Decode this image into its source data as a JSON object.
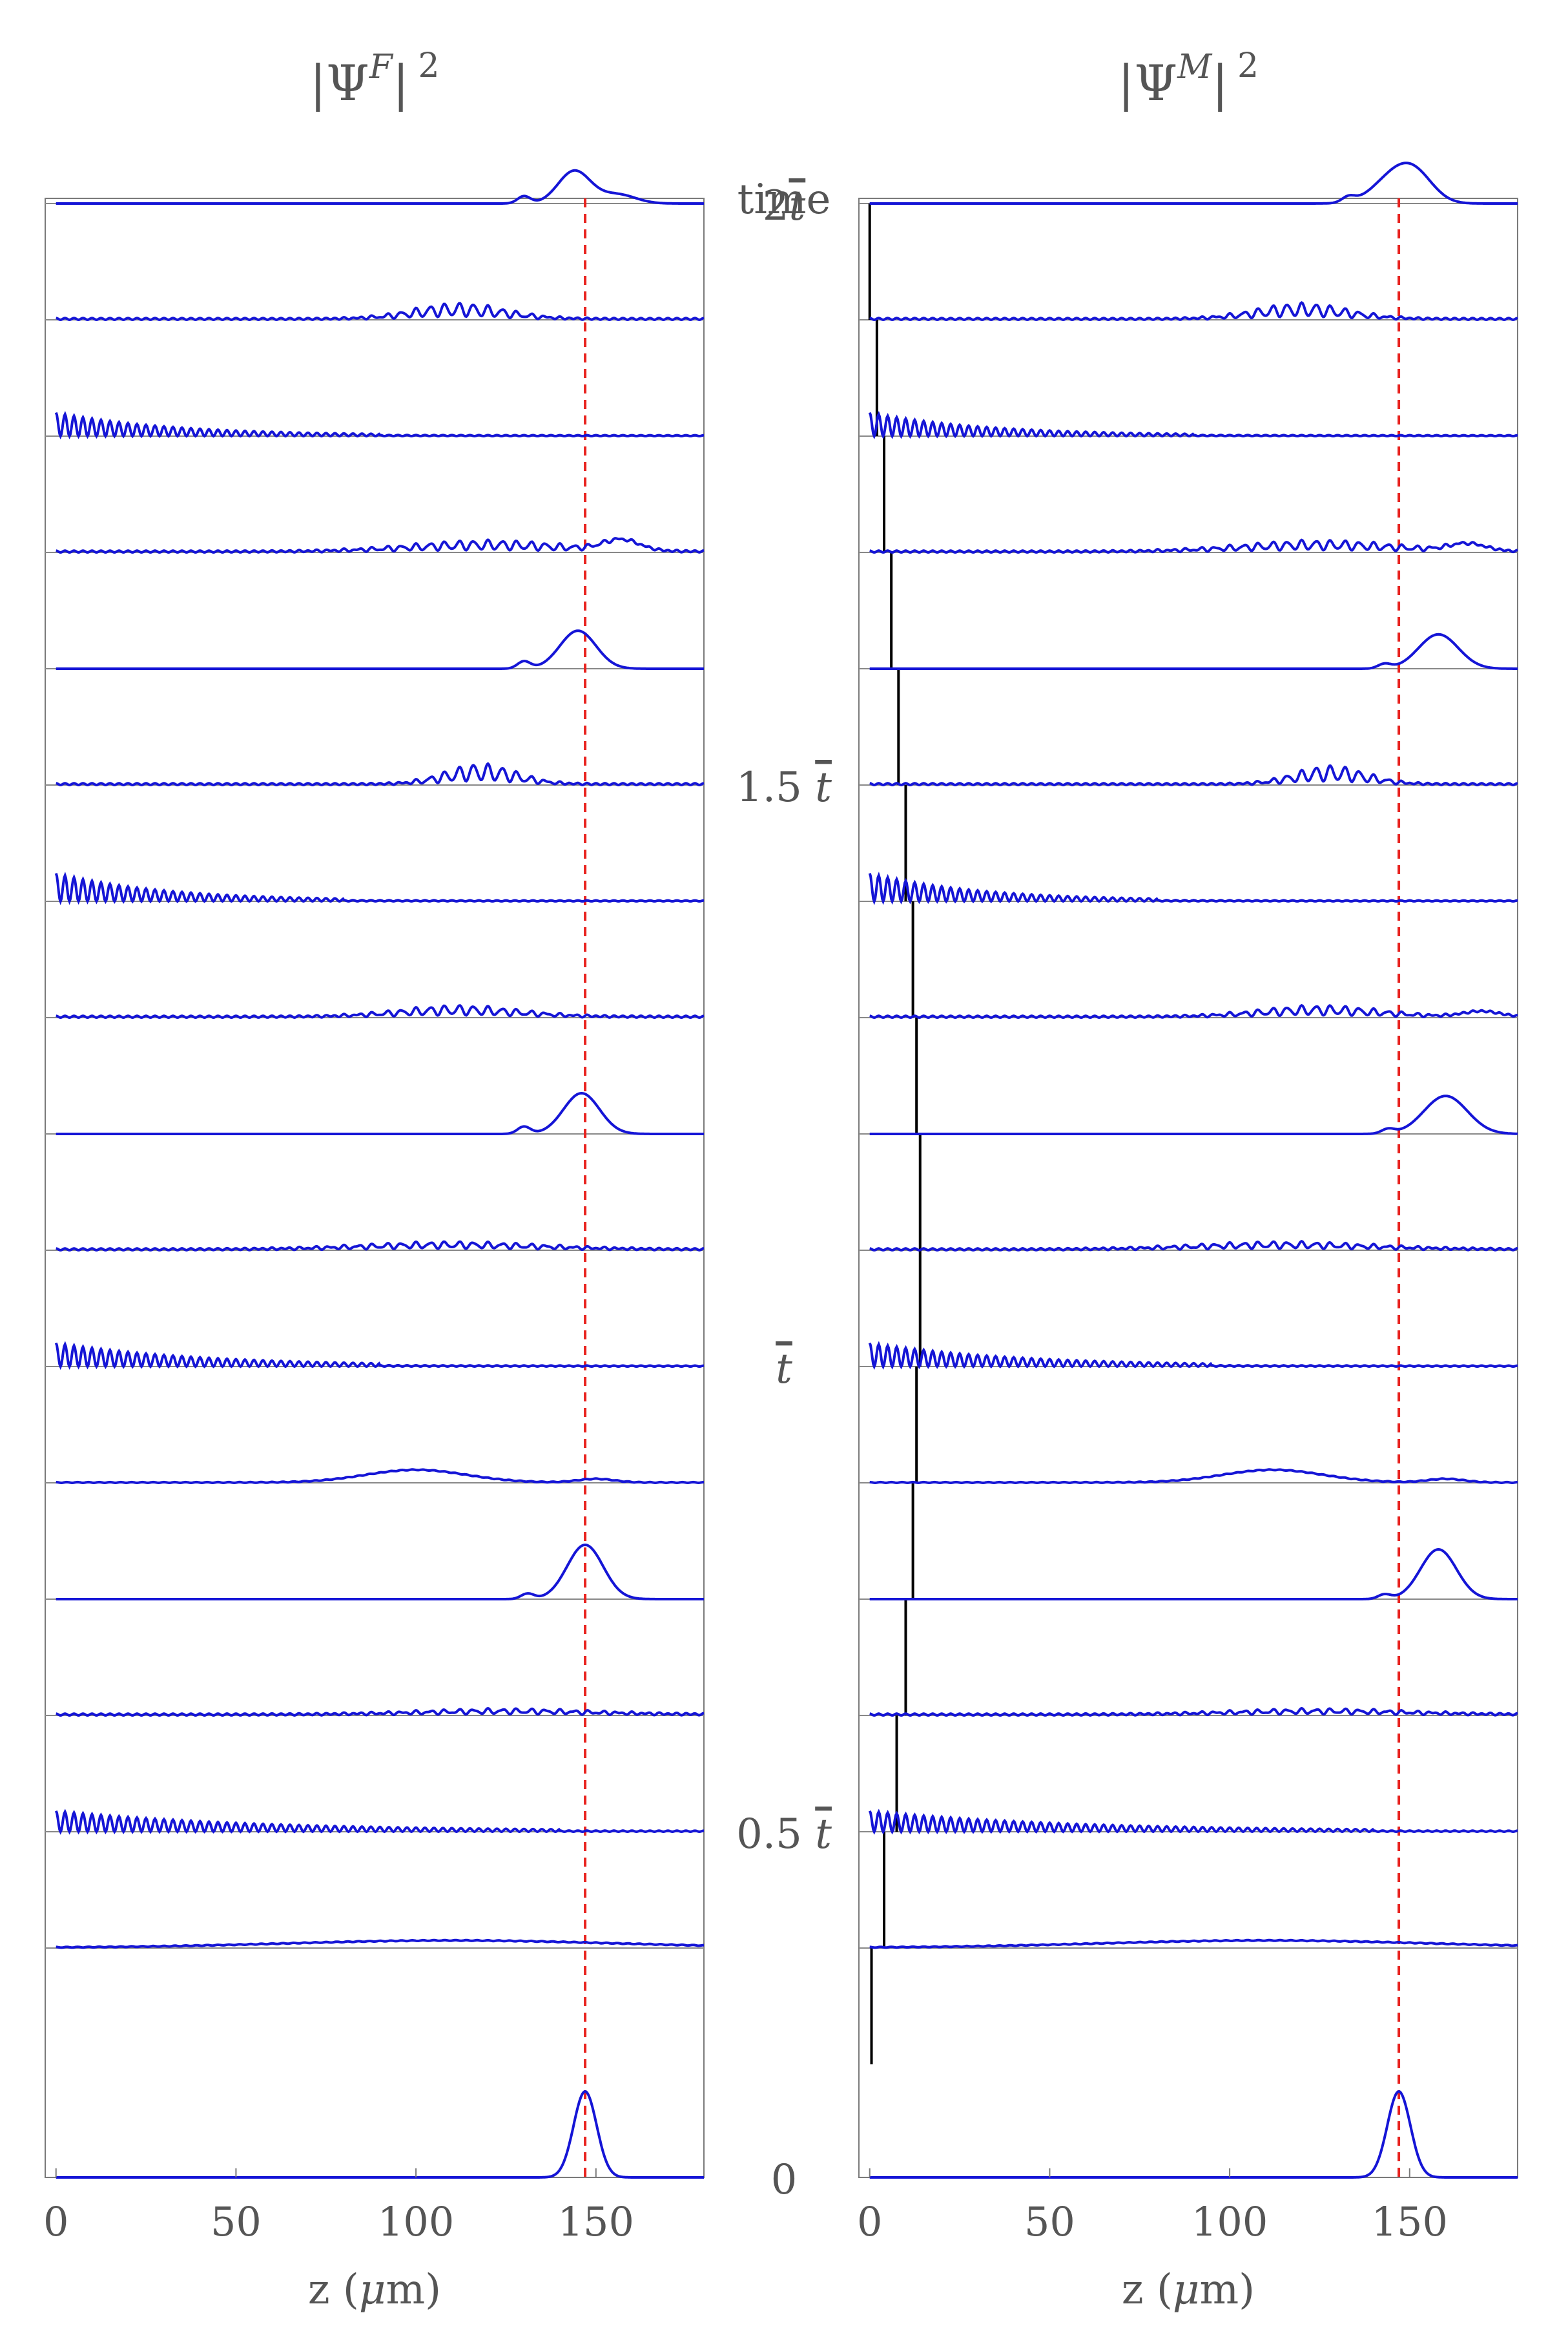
{
  "figure": {
    "middle_axis_label": "time",
    "time_ticks": [
      {
        "label": "2",
        "bar": "t",
        "level": 16
      },
      {
        "label": "1.5 ",
        "bar": "t",
        "level": 11
      },
      {
        "label": "",
        "bar": "t",
        "level": 6
      },
      {
        "label": "0.5 ",
        "bar": "t",
        "level": 2
      },
      {
        "label": "0",
        "bar": "",
        "level": -1
      }
    ]
  },
  "chart_data": [
    {
      "type": "line",
      "panel": "left",
      "title": {
        "base": "|Ψ",
        "sup": "F",
        "tail": "|",
        "exp": "2"
      },
      "xlabel": {
        "pre": "z (",
        "mu": "μ",
        "post": "m)"
      },
      "xticks": [
        "0",
        "50",
        "100",
        "150"
      ],
      "xlim": [
        -3,
        180
      ],
      "reference_line_z": 147,
      "reference_line_color": "#e8231f",
      "line_color": "#1515d6",
      "time_levels": 17,
      "series": [
        {
          "level": 0,
          "kind": "gaussian",
          "center": 147,
          "width": 3.2,
          "amp": 0.95
        },
        {
          "level": 1,
          "kind": "broad",
          "center": 110,
          "width": 45,
          "amp": 0.08
        },
        {
          "level": 2,
          "kind": "fringe",
          "fringe_amp": 0.22,
          "fringe_decay": 55,
          "fringe_end": 120
        },
        {
          "level": 3,
          "kind": "ripple",
          "center": 125,
          "width": 25,
          "amp": 0.06
        },
        {
          "level": 4,
          "kind": "peak",
          "center": 147,
          "width": 5,
          "amp": 0.6,
          "side_center": 131,
          "side_amp": 0.06
        },
        {
          "level": 5,
          "kind": "broad",
          "center": 100,
          "width": 14,
          "amp": 0.14,
          "tail_center": 150,
          "tail_amp": 0.04
        },
        {
          "level": 6,
          "kind": "fringe",
          "fringe_amp": 0.25,
          "fringe_decay": 40,
          "fringe_end": 70
        },
        {
          "level": 7,
          "kind": "ripple",
          "center": 110,
          "width": 25,
          "amp": 0.08
        },
        {
          "level": 8,
          "kind": "peak",
          "center": 146,
          "width": 5,
          "amp": 0.45,
          "side_center": 130,
          "side_amp": 0.08
        },
        {
          "level": 9,
          "kind": "ripple",
          "center": 112,
          "width": 17,
          "amp": 0.12
        },
        {
          "level": 10,
          "kind": "fringe",
          "fringe_amp": 0.3,
          "fringe_decay": 30,
          "fringe_end": 60
        },
        {
          "level": 11,
          "kind": "ripple",
          "center": 118,
          "width": 10,
          "amp": 0.22
        },
        {
          "level": 12,
          "kind": "peak",
          "center": 145,
          "width": 5,
          "amp": 0.42,
          "side_center": 130,
          "side_amp": 0.08
        },
        {
          "level": 13,
          "kind": "ripple",
          "center": 120,
          "width": 22,
          "amp": 0.12,
          "tail_center": 157,
          "tail_amp": 0.12
        },
        {
          "level": 14,
          "kind": "fringe",
          "fringe_amp": 0.25,
          "fringe_decay": 32,
          "fringe_end": 70
        },
        {
          "level": 15,
          "kind": "ripple",
          "center": 112,
          "width": 13,
          "amp": 0.17
        },
        {
          "level": 16,
          "kind": "peak",
          "center": 144,
          "width": 4.5,
          "amp": 0.36,
          "side_center": 130,
          "side_amp": 0.08,
          "tail_center": 156,
          "tail_amp": 0.1
        }
      ]
    },
    {
      "type": "line",
      "panel": "right",
      "title": {
        "base": "|Ψ",
        "sup": "M",
        "tail": "|",
        "exp": "2"
      },
      "xlabel": {
        "pre": "z (",
        "mu": "μ",
        "post": "m)"
      },
      "xticks": [
        "0",
        "50",
        "100",
        "150"
      ],
      "xlim": [
        -3,
        180
      ],
      "reference_line_z": 147,
      "reference_line_color": "#e8231f",
      "line_color": "#1515d6",
      "barrier_color": "#000000",
      "time_levels": 17,
      "barrier_z_per_level": [
        0,
        0.5,
        4,
        7.5,
        10,
        12,
        13,
        14,
        14,
        13,
        12,
        10,
        8,
        6,
        4,
        2,
        0
      ],
      "series": [
        {
          "level": 0,
          "kind": "gaussian",
          "center": 147,
          "width": 3.2,
          "amp": 0.95
        },
        {
          "level": 1,
          "kind": "broad",
          "center": 110,
          "width": 45,
          "amp": 0.08
        },
        {
          "level": 2,
          "kind": "fringe",
          "fringe_amp": 0.22,
          "fringe_decay": 55,
          "fringe_end": 120
        },
        {
          "level": 3,
          "kind": "ripple",
          "center": 125,
          "width": 25,
          "amp": 0.06
        },
        {
          "level": 4,
          "kind": "peak",
          "center": 158,
          "width": 5,
          "amp": 0.55,
          "side_center": 143,
          "side_amp": 0.05
        },
        {
          "level": 5,
          "kind": "broad",
          "center": 112,
          "width": 14,
          "amp": 0.14,
          "tail_center": 160,
          "tail_amp": 0.04
        },
        {
          "level": 6,
          "kind": "fringe",
          "fringe_amp": 0.25,
          "fringe_decay": 40,
          "fringe_end": 75
        },
        {
          "level": 7,
          "kind": "ripple",
          "center": 115,
          "width": 25,
          "amp": 0.08
        },
        {
          "level": 8,
          "kind": "peak",
          "center": 160,
          "width": 6,
          "amp": 0.42,
          "side_center": 144,
          "side_amp": 0.05
        },
        {
          "level": 9,
          "kind": "ripple",
          "center": 125,
          "width": 17,
          "amp": 0.12,
          "tail_center": 170,
          "tail_amp": 0.06
        },
        {
          "level": 10,
          "kind": "fringe",
          "fringe_amp": 0.3,
          "fringe_decay": 30,
          "fringe_end": 60
        },
        {
          "level": 11,
          "kind": "ripple",
          "center": 128,
          "width": 10,
          "amp": 0.2
        },
        {
          "level": 12,
          "kind": "peak",
          "center": 158,
          "width": 5.5,
          "amp": 0.38,
          "side_center": 143,
          "side_amp": 0.05
        },
        {
          "level": 13,
          "kind": "ripple",
          "center": 125,
          "width": 22,
          "amp": 0.12,
          "tail_center": 166,
          "tail_amp": 0.08
        },
        {
          "level": 14,
          "kind": "fringe",
          "fringe_amp": 0.25,
          "fringe_decay": 32,
          "fringe_end": 70
        },
        {
          "level": 15,
          "kind": "ripple",
          "center": 120,
          "width": 13,
          "amp": 0.17
        },
        {
          "level": 16,
          "kind": "peak",
          "center": 146,
          "width": 6,
          "amp": 0.3,
          "side_center": 133,
          "side_amp": 0.06,
          "tail_center": 152,
          "tail_amp": 0.22
        }
      ]
    }
  ]
}
